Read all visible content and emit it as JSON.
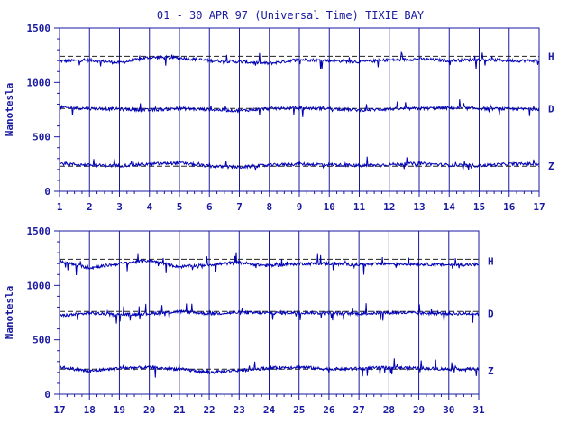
{
  "title": "01 - 30 APR 97 (Universal Time) TIXIE BAY",
  "colors": {
    "ink": "#1a1aa0",
    "trace": "#0000b4",
    "background": "#ffffff"
  },
  "chart_data": [
    {
      "type": "line",
      "panel": "top",
      "ylabel": "Nanotesla",
      "ylim": [
        0,
        1500
      ],
      "yticks": [
        "0",
        "500",
        "1000",
        "1500"
      ],
      "xlim": [
        1,
        17
      ],
      "xticks": [
        "1",
        "2",
        "3",
        "4",
        "5",
        "6",
        "7",
        "8",
        "9",
        "10",
        "11",
        "12",
        "13",
        "14",
        "15",
        "16",
        "17"
      ],
      "grid": "vertical lines at each day",
      "series": [
        {
          "name": "H",
          "baseline": 1240,
          "level": 1195,
          "values": [
            1195,
            1205,
            1180,
            1230,
            1225,
            1200,
            1190,
            1175,
            1210,
            1200,
            1190,
            1205,
            1215,
            1200,
            1210,
            1200
          ]
        },
        {
          "name": "D",
          "baseline": 760,
          "level": 765,
          "values": [
            770,
            760,
            755,
            745,
            760,
            750,
            740,
            760,
            765,
            760,
            745,
            755,
            760,
            765,
            760,
            755
          ]
        },
        {
          "name": "Z",
          "baseline": 230,
          "level": 245,
          "values": [
            255,
            240,
            235,
            250,
            260,
            230,
            220,
            240,
            250,
            245,
            235,
            245,
            255,
            240,
            235,
            250
          ]
        }
      ]
    },
    {
      "type": "line",
      "panel": "bottom",
      "ylabel": "Nanotesla",
      "ylim": [
        0,
        1500
      ],
      "yticks": [
        "0",
        "500",
        "1000",
        "1500"
      ],
      "xlim": [
        17,
        31
      ],
      "xticks": [
        "17",
        "18",
        "19",
        "20",
        "21",
        "22",
        "23",
        "24",
        "25",
        "26",
        "27",
        "28",
        "29",
        "30",
        "31"
      ],
      "grid": "vertical lines at each day",
      "series": [
        {
          "name": "H",
          "baseline": 1240,
          "level": 1195,
          "values": [
            1220,
            1160,
            1200,
            1230,
            1170,
            1190,
            1210,
            1180,
            1200,
            1200,
            1190,
            1200,
            1195,
            1190
          ]
        },
        {
          "name": "D",
          "baseline": 760,
          "level": 745,
          "values": [
            720,
            745,
            730,
            740,
            760,
            740,
            750,
            745,
            750,
            745,
            740,
            750,
            745,
            740
          ]
        },
        {
          "name": "Z",
          "baseline": 230,
          "level": 240,
          "values": [
            250,
            210,
            240,
            245,
            230,
            200,
            220,
            240,
            250,
            230,
            235,
            245,
            240,
            230
          ]
        }
      ]
    }
  ]
}
